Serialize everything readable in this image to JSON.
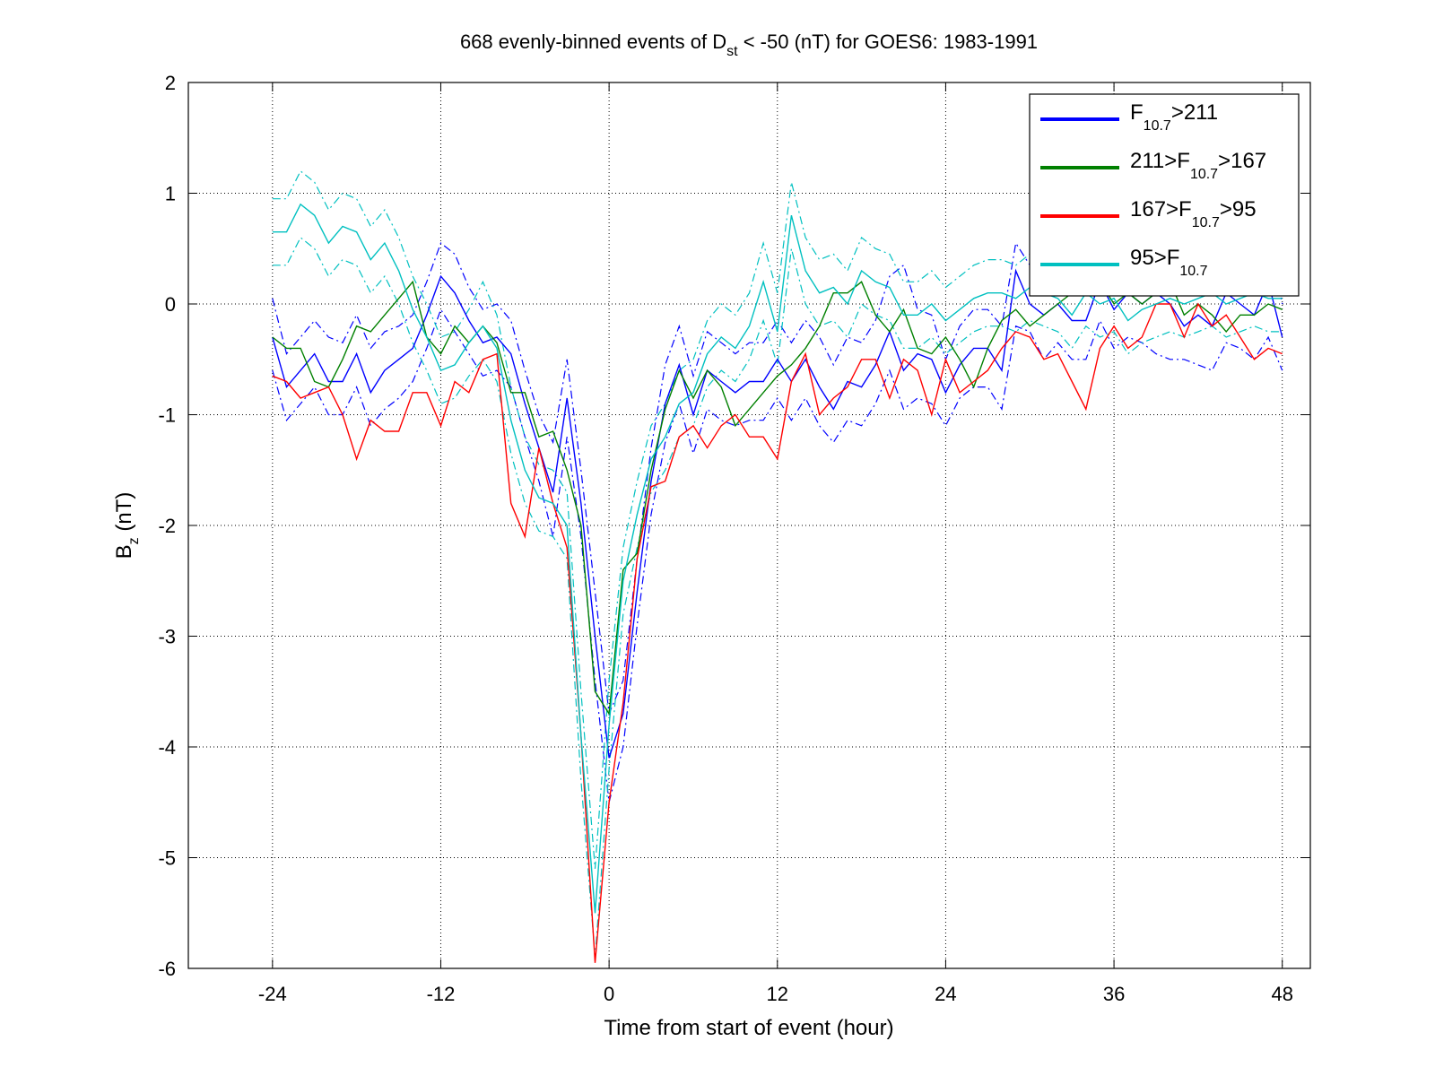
{
  "chart_data": {
    "type": "line",
    "title": {
      "prefix": "668 evenly-binned events of D",
      "sub": "st",
      "suffix": " < -50 (nT) for GOES6: 1983-1991"
    },
    "xlabel": "Time from start of event (hour)",
    "ylabel": {
      "main": "B",
      "sub": "z",
      "suffix": " (nT)"
    },
    "xlim": [
      -30,
      50
    ],
    "ylim": [
      -6,
      2
    ],
    "xticks": [
      -24,
      -12,
      0,
      12,
      24,
      36,
      48
    ],
    "yticks": [
      2,
      1,
      0,
      -1,
      -2,
      -3,
      -4,
      -5,
      -6
    ],
    "grid": true,
    "legend_position": "top-right",
    "x": [
      -24,
      -23,
      -22,
      -21,
      -20,
      -19,
      -18,
      -17,
      -16,
      -15,
      -14,
      -13,
      -12,
      -11,
      -10,
      -9,
      -8,
      -7,
      -6,
      -5,
      -4,
      -3,
      -2,
      -1,
      0,
      1,
      2,
      3,
      4,
      5,
      6,
      7,
      8,
      9,
      10,
      11,
      12,
      13,
      14,
      15,
      16,
      17,
      18,
      19,
      20,
      21,
      22,
      23,
      24,
      25,
      26,
      27,
      28,
      29,
      30,
      31,
      32,
      33,
      34,
      35,
      36,
      37,
      38,
      39,
      40,
      41,
      42,
      43,
      44,
      45,
      46,
      47,
      48
    ],
    "series": [
      {
        "name": "F10.7>211",
        "legend": {
          "prefix": "F",
          "sub": "10.7",
          "suffix": ">211"
        },
        "color": "#0000ff",
        "values": [
          -0.3,
          -0.75,
          -0.6,
          -0.45,
          -0.7,
          -0.7,
          -0.45,
          -0.8,
          -0.6,
          -0.5,
          -0.4,
          -0.1,
          0.25,
          0.1,
          -0.15,
          -0.35,
          -0.3,
          -0.45,
          -0.9,
          -1.3,
          -1.7,
          -0.85,
          -1.8,
          -3.0,
          -4.1,
          -3.7,
          -2.6,
          -1.6,
          -0.9,
          -0.55,
          -1.0,
          -0.6,
          -0.7,
          -0.8,
          -0.7,
          -0.7,
          -0.5,
          -0.7,
          -0.5,
          -0.75,
          -0.95,
          -0.7,
          -0.75,
          -0.55,
          -0.25,
          -0.6,
          -0.45,
          -0.5,
          -0.8,
          -0.55,
          -0.4,
          -0.4,
          -0.6,
          0.3,
          0.0,
          -0.1,
          0.0,
          -0.15,
          -0.15,
          0.2,
          -0.05,
          0.1,
          0.0,
          0.1,
          0.0,
          -0.2,
          -0.1,
          -0.2,
          0.1,
          0.0,
          -0.1,
          0.2,
          -0.3
        ],
        "upper": [
          0.05,
          -0.45,
          -0.3,
          -0.15,
          -0.3,
          -0.35,
          -0.1,
          -0.4,
          -0.25,
          -0.2,
          -0.1,
          0.2,
          0.55,
          0.45,
          0.15,
          -0.05,
          0.0,
          -0.15,
          -0.6,
          -1.0,
          -1.25,
          -0.5,
          -1.5,
          -2.6,
          -3.7,
          -3.4,
          -2.3,
          -1.3,
          -0.55,
          -0.2,
          -0.65,
          -0.25,
          -0.35,
          -0.45,
          -0.35,
          -0.35,
          -0.15,
          -0.35,
          -0.15,
          -0.3,
          -0.55,
          -0.3,
          -0.35,
          -0.15,
          0.25,
          0.35,
          -0.05,
          -0.1,
          -0.5,
          -0.2,
          -0.05,
          -0.05,
          -0.2,
          0.55,
          0.35,
          0.35,
          0.4,
          0.25,
          0.25,
          0.6,
          0.35,
          0.5,
          0.45,
          0.55,
          0.45,
          0.25,
          0.35,
          0.25,
          0.5,
          0.4,
          0.3,
          0.6,
          0.0
        ],
        "lower": [
          -0.6,
          -1.05,
          -0.9,
          -0.75,
          -1.0,
          -1.0,
          -0.75,
          -1.1,
          -0.95,
          -0.85,
          -0.7,
          -0.4,
          -0.05,
          -0.25,
          -0.45,
          -0.65,
          -0.6,
          -0.75,
          -1.2,
          -1.6,
          -2.1,
          -1.2,
          -2.1,
          -3.4,
          -4.5,
          -4.0,
          -2.9,
          -1.9,
          -1.25,
          -0.9,
          -1.35,
          -0.95,
          -1.05,
          -1.1,
          -1.05,
          -1.05,
          -0.85,
          -1.05,
          -0.85,
          -1.1,
          -1.25,
          -1.05,
          -1.1,
          -0.9,
          -0.6,
          -0.95,
          -0.85,
          -0.9,
          -1.1,
          -0.85,
          -0.75,
          -0.75,
          -0.95,
          -0.2,
          -0.25,
          -0.5,
          -0.35,
          -0.5,
          -0.5,
          -0.15,
          -0.4,
          -0.3,
          -0.35,
          -0.45,
          -0.5,
          -0.5,
          -0.55,
          -0.6,
          -0.35,
          -0.4,
          -0.5,
          -0.3,
          -0.6
        ]
      },
      {
        "name": "211>F10.7>167",
        "legend": {
          "prefix": "211>F",
          "sub": "10.7",
          "suffix": ">167"
        },
        "color": "#008000",
        "values": [
          -0.3,
          -0.4,
          -0.4,
          -0.7,
          -0.75,
          -0.5,
          -0.2,
          -0.25,
          -0.1,
          0.05,
          0.2,
          -0.3,
          -0.45,
          -0.2,
          -0.35,
          -0.2,
          -0.35,
          -0.8,
          -0.8,
          -1.2,
          -1.15,
          -1.5,
          -2.0,
          -3.5,
          -3.7,
          -2.4,
          -2.25,
          -1.5,
          -0.95,
          -0.6,
          -0.85,
          -0.6,
          -0.75,
          -1.1,
          -0.95,
          -0.8,
          -0.65,
          -0.55,
          -0.4,
          -0.2,
          0.1,
          0.1,
          0.2,
          -0.1,
          -0.25,
          -0.05,
          -0.4,
          -0.45,
          -0.3,
          -0.5,
          -0.75,
          -0.4,
          -0.15,
          -0.05,
          -0.2,
          -0.1,
          0.0,
          0.1,
          0.1,
          0.2,
          0.0,
          0.1,
          0.0,
          0.1,
          0.2,
          -0.1,
          0.0,
          -0.1,
          -0.25,
          -0.1,
          -0.1,
          0.0,
          -0.05
        ]
      },
      {
        "name": "167>F10.7>95",
        "legend": {
          "prefix": "167>F",
          "sub": "10.7",
          "suffix": ">95"
        },
        "color": "#ff0000",
        "values": [
          -0.65,
          -0.7,
          -0.85,
          -0.8,
          -0.75,
          -1.0,
          -1.4,
          -1.05,
          -1.15,
          -1.15,
          -0.8,
          -0.8,
          -1.1,
          -0.7,
          -0.8,
          -0.5,
          -0.45,
          -1.8,
          -2.1,
          -1.3,
          -1.8,
          -2.2,
          -3.9,
          -5.95,
          -4.5,
          -3.6,
          -2.3,
          -1.65,
          -1.6,
          -1.2,
          -1.1,
          -1.3,
          -1.1,
          -1.0,
          -1.2,
          -1.2,
          -1.4,
          -0.7,
          -0.45,
          -1.0,
          -0.85,
          -0.75,
          -0.5,
          -0.5,
          -0.85,
          -0.5,
          -0.6,
          -1.0,
          -0.5,
          -0.8,
          -0.7,
          -0.6,
          -0.4,
          -0.25,
          -0.3,
          -0.5,
          -0.45,
          -0.7,
          -0.95,
          -0.4,
          -0.2,
          -0.4,
          -0.3,
          0.0,
          0.0,
          -0.3,
          0.0,
          -0.2,
          -0.1,
          -0.3,
          -0.5,
          -0.4,
          -0.45
        ]
      },
      {
        "name": "95>F10.7",
        "legend": {
          "prefix": "95>F",
          "sub": "10.7",
          "suffix": ""
        },
        "color": "#00c0c0",
        "values": [
          0.65,
          0.65,
          0.9,
          0.8,
          0.55,
          0.7,
          0.65,
          0.4,
          0.55,
          0.3,
          -0.05,
          -0.3,
          -0.6,
          -0.55,
          -0.35,
          -0.2,
          -0.4,
          -1.05,
          -1.5,
          -1.75,
          -1.8,
          -2.0,
          -3.9,
          -5.5,
          -3.8,
          -2.5,
          -1.9,
          -1.4,
          -1.2,
          -0.9,
          -0.8,
          -0.45,
          -0.3,
          -0.4,
          -0.2,
          0.2,
          -0.25,
          0.8,
          0.3,
          0.1,
          0.15,
          0.0,
          0.3,
          0.2,
          0.15,
          -0.1,
          -0.1,
          0.0,
          -0.15,
          -0.05,
          0.05,
          0.1,
          0.1,
          0.05,
          0.15,
          0.1,
          0.05,
          -0.1,
          0.1,
          0.0,
          0.05,
          -0.15,
          -0.05,
          0.0,
          0.05,
          0.0,
          0.05,
          0.1,
          0.0,
          0.05,
          0.1,
          0.05,
          0.05
        ],
        "upper": [
          0.95,
          0.95,
          1.2,
          1.1,
          0.85,
          1.0,
          0.95,
          0.7,
          0.85,
          0.6,
          0.25,
          0.0,
          -0.3,
          -0.25,
          -0.05,
          0.2,
          -0.1,
          -0.75,
          -1.2,
          -1.45,
          -1.5,
          -1.7,
          -3.5,
          -5.1,
          -3.4,
          -2.2,
          -1.6,
          -1.1,
          -0.9,
          -0.6,
          -0.5,
          -0.15,
          0.0,
          -0.1,
          0.1,
          0.55,
          0.1,
          1.1,
          0.6,
          0.4,
          0.45,
          0.3,
          0.6,
          0.5,
          0.45,
          0.2,
          0.2,
          0.3,
          0.15,
          0.25,
          0.35,
          0.4,
          0.4,
          0.35,
          0.45,
          0.4,
          0.35,
          0.2,
          0.4,
          0.3,
          0.35,
          0.15,
          0.25,
          0.3,
          0.35,
          0.3,
          0.35,
          0.4,
          0.3,
          0.35,
          0.4,
          0.35,
          0.35
        ],
        "lower": [
          0.35,
          0.35,
          0.6,
          0.5,
          0.25,
          0.4,
          0.35,
          0.1,
          0.25,
          0.0,
          -0.35,
          -0.6,
          -0.9,
          -0.85,
          -0.65,
          -0.5,
          -0.7,
          -1.35,
          -1.8,
          -2.05,
          -2.1,
          -2.3,
          -4.3,
          -5.9,
          -4.2,
          -2.8,
          -2.2,
          -1.7,
          -1.5,
          -1.2,
          -1.1,
          -0.75,
          -0.6,
          -0.7,
          -0.5,
          -0.15,
          -0.55,
          0.5,
          0.0,
          -0.2,
          -0.15,
          -0.3,
          0.0,
          -0.1,
          -0.15,
          -0.4,
          -0.4,
          -0.3,
          -0.45,
          -0.35,
          -0.25,
          -0.2,
          -0.2,
          -0.25,
          -0.15,
          -0.2,
          -0.25,
          -0.4,
          -0.2,
          -0.3,
          -0.25,
          -0.45,
          -0.35,
          -0.3,
          -0.25,
          -0.3,
          -0.25,
          -0.2,
          -0.3,
          -0.25,
          -0.2,
          -0.25,
          -0.25
        ]
      }
    ]
  }
}
